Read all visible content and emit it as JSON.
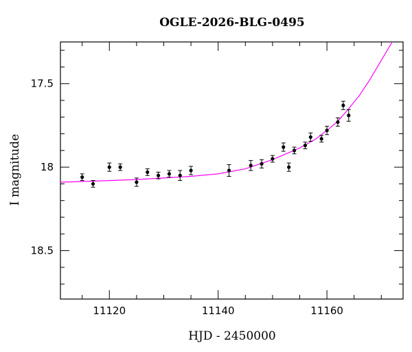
{
  "chart_data": {
    "type": "scatter",
    "title": "OGLE-2026-BLG-0495",
    "xlabel": "HJD - 2450000",
    "ylabel": "I magnitude",
    "xlim": [
      11111,
      11174
    ],
    "ylim": [
      18.79,
      17.25
    ],
    "y_inverted": true,
    "grid": false,
    "legend": "none",
    "x_major_ticks": [
      11120,
      11140,
      11160
    ],
    "x_minor_ticks": [
      11110,
      11115,
      11125,
      11130,
      11135,
      11145,
      11150,
      11155,
      11165,
      11170
    ],
    "y_major_ticks": [
      17.5,
      18,
      18.5
    ],
    "y_minor_ticks": [
      17.3,
      17.4,
      17.6,
      17.7,
      17.8,
      17.9,
      18.1,
      18.2,
      18.3,
      18.4,
      18.6,
      18.7
    ],
    "x_tick_labels": [
      "11120",
      "11140",
      "11160"
    ],
    "y_tick_labels": [
      "17.5",
      "18",
      "18.5"
    ],
    "series": [
      {
        "kind": "points",
        "color": "#000000",
        "points": [
          {
            "x": 11115.0,
            "y": 18.06,
            "err": 0.02
          },
          {
            "x": 11117.0,
            "y": 18.1,
            "err": 0.02
          },
          {
            "x": 11120.0,
            "y": 18.0,
            "err": 0.025
          },
          {
            "x": 11122.0,
            "y": 18.0,
            "err": 0.02
          },
          {
            "x": 11125.0,
            "y": 18.09,
            "err": 0.025
          },
          {
            "x": 11127.0,
            "y": 18.03,
            "err": 0.02
          },
          {
            "x": 11129.0,
            "y": 18.05,
            "err": 0.02
          },
          {
            "x": 11131.0,
            "y": 18.04,
            "err": 0.02
          },
          {
            "x": 11133.0,
            "y": 18.05,
            "err": 0.03
          },
          {
            "x": 11135.0,
            "y": 18.02,
            "err": 0.025
          },
          {
            "x": 11142.0,
            "y": 18.02,
            "err": 0.035
          },
          {
            "x": 11146.0,
            "y": 17.99,
            "err": 0.03
          },
          {
            "x": 11148.0,
            "y": 17.98,
            "err": 0.025
          },
          {
            "x": 11150.0,
            "y": 17.95,
            "err": 0.02
          },
          {
            "x": 11152.0,
            "y": 17.88,
            "err": 0.025
          },
          {
            "x": 11153.0,
            "y": 18.0,
            "err": 0.025
          },
          {
            "x": 11154.0,
            "y": 17.9,
            "err": 0.02
          },
          {
            "x": 11156.0,
            "y": 17.87,
            "err": 0.02
          },
          {
            "x": 11157.0,
            "y": 17.82,
            "err": 0.025
          },
          {
            "x": 11159.0,
            "y": 17.83,
            "err": 0.02
          },
          {
            "x": 11160.0,
            "y": 17.78,
            "err": 0.025
          },
          {
            "x": 11162.0,
            "y": 17.73,
            "err": 0.025
          },
          {
            "x": 11163.0,
            "y": 17.63,
            "err": 0.025
          },
          {
            "x": 11164.0,
            "y": 17.69,
            "err": 0.035
          }
        ]
      },
      {
        "kind": "model-curve",
        "color": "#ff00ff",
        "points": [
          {
            "x": 11111.0,
            "y": 18.09
          },
          {
            "x": 11115.0,
            "y": 18.086
          },
          {
            "x": 11120.0,
            "y": 18.08
          },
          {
            "x": 11125.0,
            "y": 18.074
          },
          {
            "x": 11130.0,
            "y": 18.065
          },
          {
            "x": 11135.0,
            "y": 18.055
          },
          {
            "x": 11140.0,
            "y": 18.04
          },
          {
            "x": 11145.0,
            "y": 18.01
          },
          {
            "x": 11150.0,
            "y": 17.955
          },
          {
            "x": 11155.0,
            "y": 17.885
          },
          {
            "x": 11158.0,
            "y": 17.83
          },
          {
            "x": 11160.0,
            "y": 17.78
          },
          {
            "x": 11162.0,
            "y": 17.725
          },
          {
            "x": 11164.0,
            "y": 17.65
          },
          {
            "x": 11166.0,
            "y": 17.57
          },
          {
            "x": 11168.0,
            "y": 17.47
          },
          {
            "x": 11170.0,
            "y": 17.36
          },
          {
            "x": 11172.0,
            "y": 17.25
          }
        ]
      }
    ]
  }
}
